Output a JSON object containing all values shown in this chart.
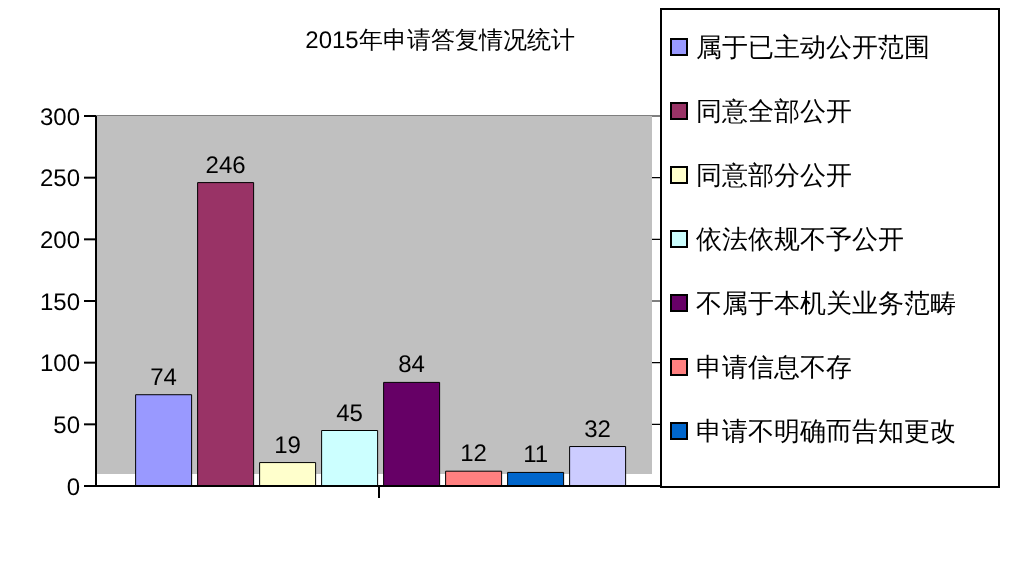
{
  "chart_data": {
    "type": "bar",
    "title": "2015年申请答复情况统计",
    "categories": [
      null
    ],
    "series": [
      {
        "name": "属于已主动公开范围",
        "color": "#9999ff",
        "values": [
          74
        ]
      },
      {
        "name": "同意全部公开",
        "color": "#993366",
        "values": [
          246
        ]
      },
      {
        "name": "同意部分公开",
        "color": "#ffffcc",
        "values": [
          19
        ]
      },
      {
        "name": "依法依规不予公开",
        "color": "#ccffff",
        "values": [
          45
        ]
      },
      {
        "name": "不属于本机关业务范畴",
        "color": "#660066",
        "values": [
          84
        ]
      },
      {
        "name": "申请信息不存",
        "color": "#ff8080",
        "values": [
          12
        ]
      },
      {
        "name": "申请不明确而告知更改",
        "color": "#0066cc",
        "values": [
          11
        ]
      },
      {
        "color": "#ccccff",
        "values": [
          32
        ]
      }
    ],
    "ylim": [
      0,
      300
    ],
    "yticks": [
      0,
      50,
      100,
      150,
      200,
      250,
      300
    ],
    "grid": "y",
    "legend": "right",
    "data_labels": true
  }
}
